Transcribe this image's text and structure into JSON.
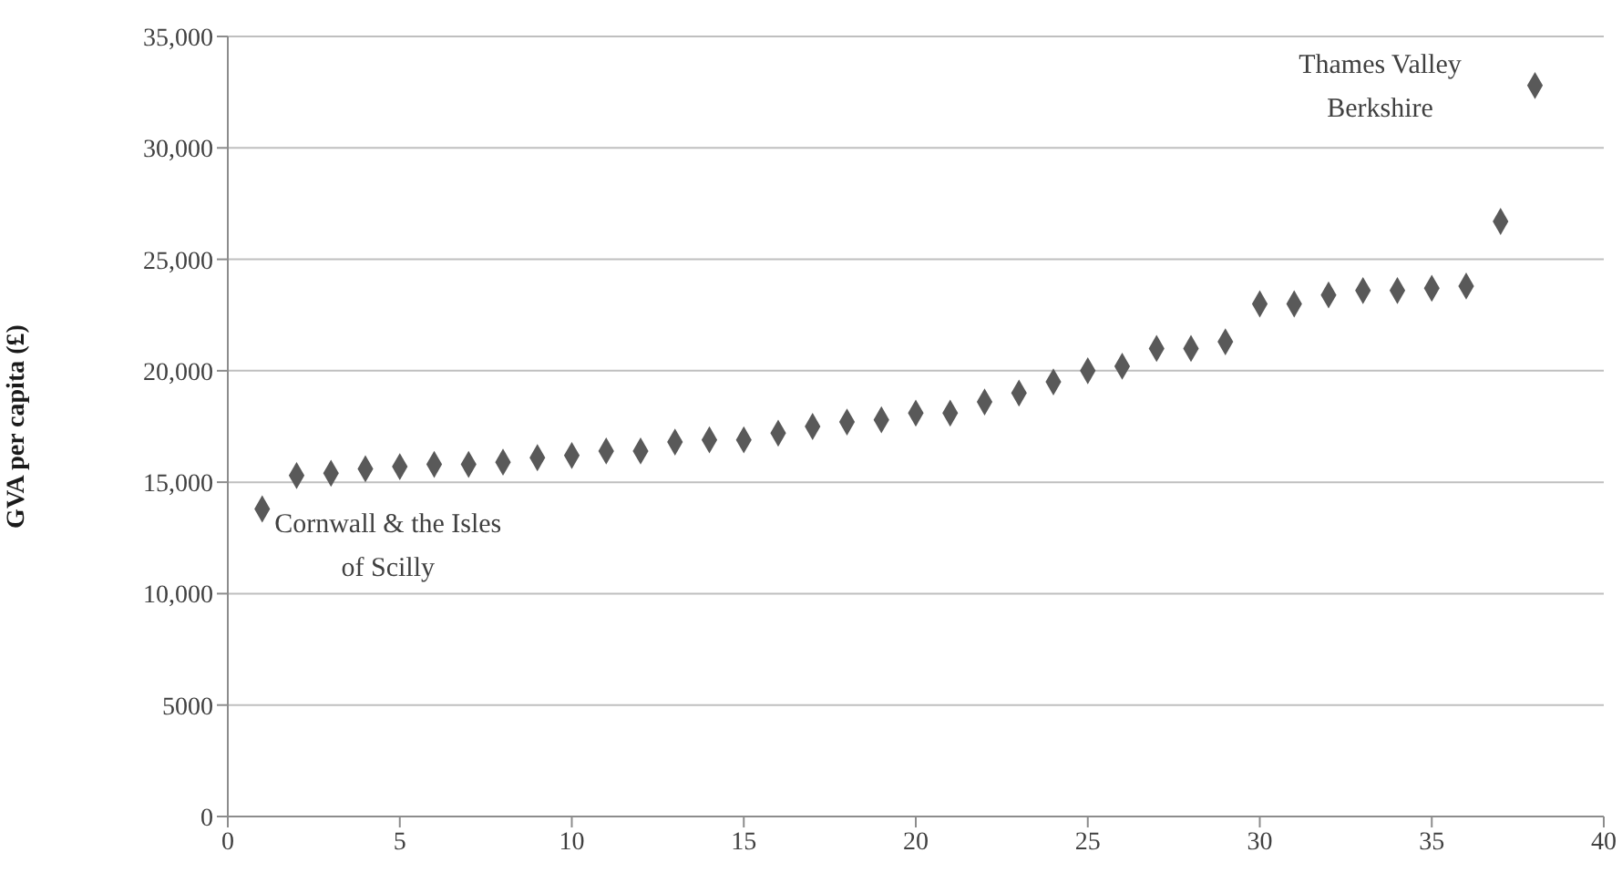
{
  "chart_data": {
    "type": "scatter",
    "ylabel": "GVA per capita (£)",
    "x": [
      1,
      2,
      3,
      4,
      5,
      6,
      7,
      8,
      9,
      10,
      11,
      12,
      13,
      14,
      15,
      16,
      17,
      18,
      19,
      20,
      21,
      22,
      23,
      24,
      25,
      26,
      27,
      28,
      29,
      30,
      31,
      32,
      33,
      34,
      35,
      36,
      37,
      38
    ],
    "series": [
      {
        "color": "#595959",
        "values": [
          13800,
          15300,
          15400,
          15600,
          15700,
          15800,
          15800,
          15900,
          16100,
          16200,
          16400,
          16400,
          16800,
          16900,
          16900,
          17200,
          17500,
          17700,
          17800,
          18100,
          18100,
          18600,
          19000,
          19500,
          20000,
          20200,
          21000,
          21000,
          21300,
          23000,
          23000,
          23400,
          23600,
          23600,
          23700,
          23800,
          26700,
          32800
        ]
      }
    ],
    "xlim": [
      0,
      40
    ],
    "xticks": [
      0,
      5,
      10,
      15,
      20,
      25,
      30,
      35,
      40
    ],
    "ylim": [
      0,
      35000
    ],
    "yticks": [
      0,
      5000,
      {
        "value": 10000,
        "label": "10,000"
      },
      {
        "value": 15000,
        "label": "15,000"
      },
      {
        "value": 20000,
        "label": "20,000"
      },
      {
        "value": 25000,
        "label": "25,000"
      },
      {
        "value": 30000,
        "label": "30,000"
      },
      {
        "value": 35000,
        "label": "35,000"
      }
    ],
    "grid": "y",
    "marker": "diamond",
    "legend": false,
    "annotations": [
      {
        "text": "Cornwall & the Isles\nof Scilly",
        "x": 1,
        "y": 13800
      },
      {
        "text": "Thames Valley\nBerkshire",
        "x": 38,
        "y": 32800
      }
    ]
  }
}
